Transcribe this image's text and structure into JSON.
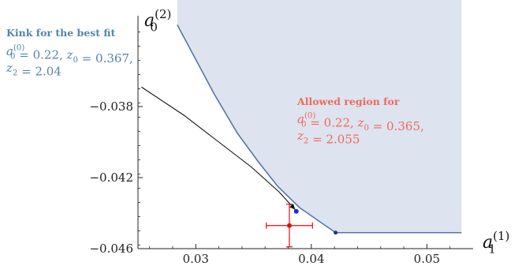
{
  "chart_data": {
    "type": "scatter",
    "xlim": [
      0.025,
      0.054
    ],
    "ylim": [
      -0.046,
      -0.034
    ],
    "x_ticks": [
      {
        "value": 0.03,
        "label": "0.03"
      },
      {
        "value": 0.04,
        "label": "0.04"
      },
      {
        "value": 0.05,
        "label": "0.05"
      }
    ],
    "y_ticks": [
      {
        "value": -0.038,
        "label": "−0.038"
      },
      {
        "value": -0.042,
        "label": "−0.042"
      },
      {
        "value": -0.046,
        "label": "−0.046"
      }
    ],
    "xlabel": {
      "base": "a",
      "sub": "1",
      "sup": "(1)"
    },
    "ylabel": {
      "base": "a",
      "sub": "0",
      "sup": "(2)"
    },
    "allowed_region": {
      "boundary": [
        [
          0.0284,
          -0.0334
        ],
        [
          0.0316,
          -0.0373
        ],
        [
          0.0336,
          -0.0395
        ],
        [
          0.0354,
          -0.0411
        ],
        [
          0.0371,
          -0.0425
        ],
        [
          0.039,
          -0.0437
        ],
        [
          0.0421,
          -0.0451
        ],
        [
          0.053,
          -0.0451
        ]
      ],
      "fill_color": "#dde3ef",
      "line_color": "#5577aa",
      "vertex_marker": [
        0.0421,
        -0.0451
      ]
    },
    "best_fit_point": {
      "x": 0.0387,
      "y": -0.0439,
      "color": "#1a2fd0"
    },
    "measurement": {
      "x": 0.0381,
      "y": -0.0447,
      "x_err": 0.002,
      "y_err": 0.0012,
      "color": "#dd1111"
    },
    "arrow": [
      [
        0.0253,
        -0.0369
      ],
      [
        0.029,
        -0.0385
      ],
      [
        0.032,
        -0.04
      ],
      [
        0.0348,
        -0.0414
      ],
      [
        0.0372,
        -0.0428
      ],
      [
        0.0386,
        -0.0438
      ]
    ],
    "annotations": {
      "kink": {
        "title": "Kink for the best fit",
        "color": "#5584a8",
        "line1": [
          {
            "t": "a",
            "sub": "0",
            "sup": "(0)"
          },
          {
            "t": " = 0.22, "
          },
          {
            "t": "z",
            "sub": "0"
          },
          {
            "t": " = 0.367,"
          }
        ],
        "line2": [
          {
            "t": "z",
            "sub": "2"
          },
          {
            "t": " = 2.04"
          }
        ]
      },
      "allowed": {
        "title": "Allowed region for",
        "color": "#f06a5a",
        "line1": [
          {
            "t": "a",
            "sub": "0",
            "sup": "(0)"
          },
          {
            "t": " = 0.22, "
          },
          {
            "t": "z",
            "sub": "0"
          },
          {
            "t": " = 0.365,"
          }
        ],
        "line2": [
          {
            "t": "z",
            "sub": "2"
          },
          {
            "t": " = 2.055"
          }
        ]
      }
    }
  }
}
